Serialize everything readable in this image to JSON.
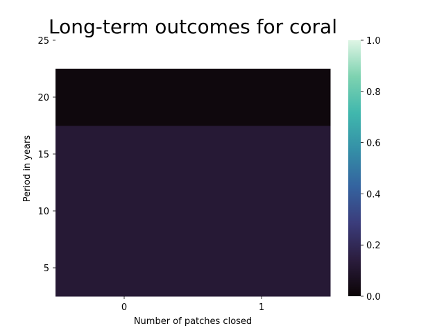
{
  "chart_data": {
    "type": "heatmap",
    "title": "Long-term outcomes for coral",
    "xlabel": "Number of patches closed",
    "ylabel": "Period in years",
    "x_categories": [
      "0",
      "1"
    ],
    "y_ticks": [
      5,
      10,
      15,
      20,
      25
    ],
    "y_tick_labels": [
      "5",
      "10",
      "15",
      "20",
      "25"
    ],
    "ylim": [
      2.5,
      25
    ],
    "rows": [
      {
        "y_from": 2.5,
        "y_to": 17.5,
        "values": [
          0.12,
          0.12
        ]
      },
      {
        "y_from": 17.5,
        "y_to": 22.5,
        "values": [
          0.02,
          0.02
        ]
      }
    ],
    "colorbar": {
      "range": [
        0.0,
        1.0
      ],
      "ticks": [
        0.0,
        0.2,
        0.4,
        0.6,
        0.8,
        1.0
      ],
      "tick_labels": [
        "0.0",
        "0.2",
        "0.4",
        "0.6",
        "0.8",
        "1.0"
      ],
      "colormap": "mako",
      "stops": [
        "#0b0405",
        "#2b1d3e",
        "#3b3c7b",
        "#34639f",
        "#348fa7",
        "#40b7ad",
        "#7dd2b0",
        "#def5e5"
      ]
    },
    "grid": false
  }
}
